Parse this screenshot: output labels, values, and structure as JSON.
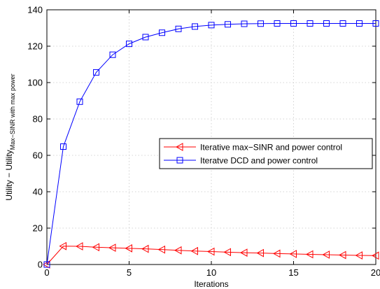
{
  "chart_data": {
    "type": "line",
    "xlabel": "Iterations",
    "ylabel": {
      "main": "Utility − Utility",
      "subscript": "Max−SINR with max power"
    },
    "xlim": [
      0,
      20
    ],
    "ylim": [
      0,
      140
    ],
    "xticks": [
      "0",
      "5",
      "10",
      "15",
      "20"
    ],
    "yticks": [
      "0",
      "20",
      "40",
      "60",
      "80",
      "100",
      "120",
      "140"
    ],
    "grid": true,
    "legend_position": "center-right",
    "x": [
      0,
      1,
      2,
      3,
      4,
      5,
      6,
      7,
      8,
      9,
      10,
      11,
      12,
      13,
      14,
      15,
      16,
      17,
      18,
      19,
      20
    ],
    "series": [
      {
        "name": "Iterative max−SINR and power control",
        "color": "#ff0000",
        "marker": "triangle-left",
        "values": [
          0,
          10.1,
          10.0,
          9.5,
          9.2,
          8.9,
          8.6,
          8.2,
          7.8,
          7.4,
          7.1,
          6.8,
          6.5,
          6.3,
          6.0,
          5.8,
          5.6,
          5.4,
          5.2,
          5.0,
          4.9
        ]
      },
      {
        "name": "Iteratve DCD and power control",
        "color": "#0000ff",
        "marker": "square",
        "values": [
          0,
          64.8,
          89.5,
          105.6,
          115.3,
          121.3,
          125.0,
          127.4,
          129.5,
          130.8,
          131.6,
          132.0,
          132.3,
          132.4,
          132.5,
          132.5,
          132.5,
          132.5,
          132.5,
          132.5,
          132.5
        ]
      }
    ]
  }
}
